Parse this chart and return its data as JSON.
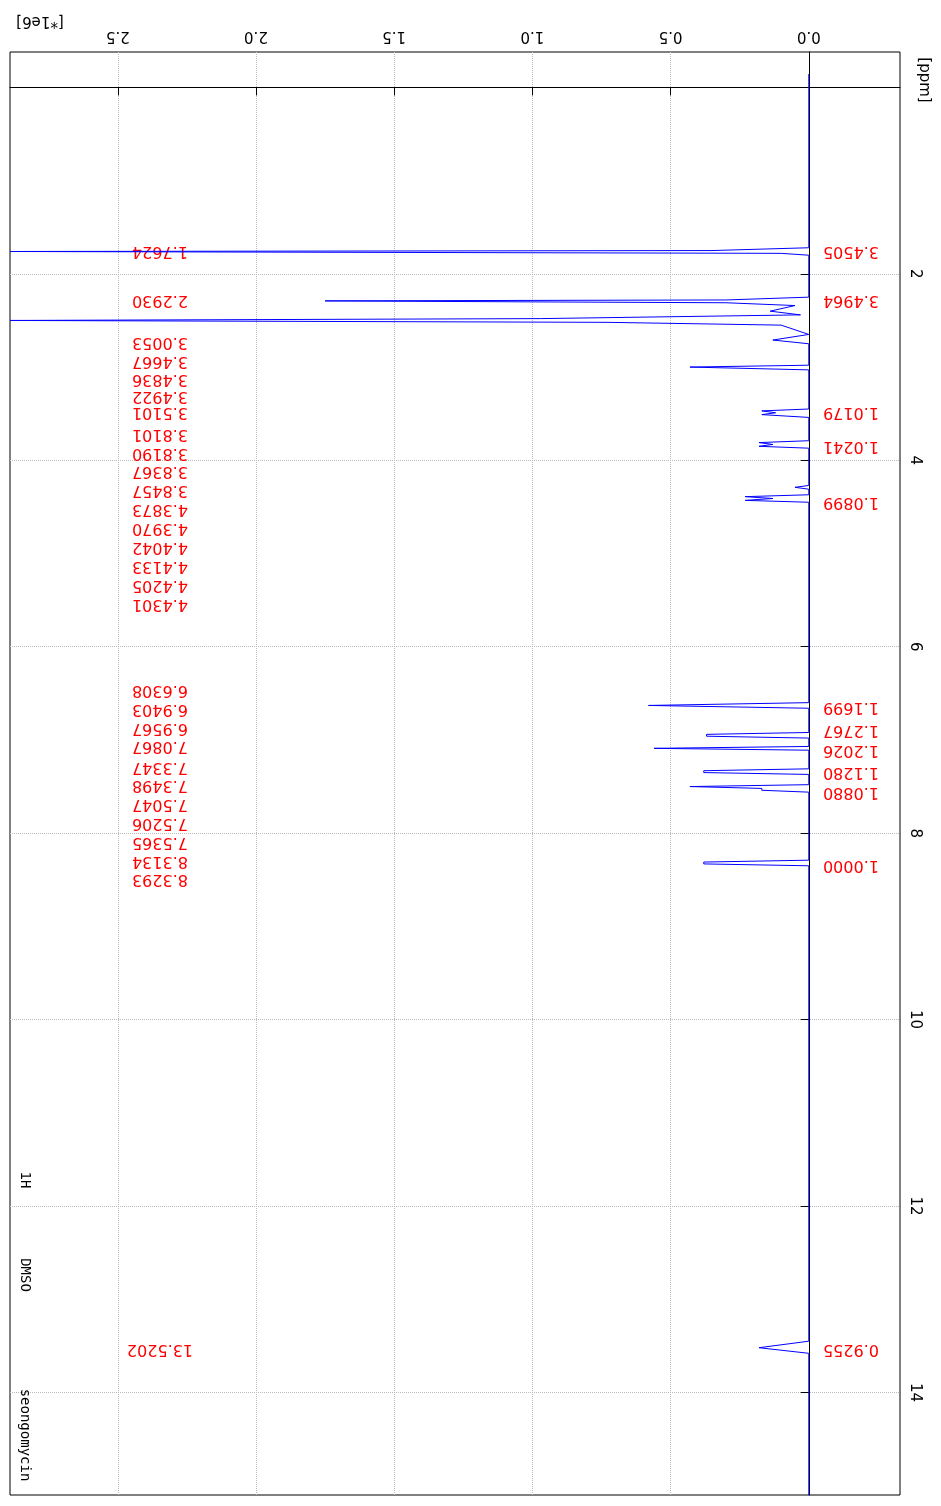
{
  "chart_data": {
    "type": "line",
    "xlabel": "[*1e6]",
    "ylabel": "[ppm]",
    "x": [
      0,
      0,
      0.35,
      2.89,
      0.1,
      0,
      0,
      0.3,
      1.75,
      0.3,
      0.05,
      0.14,
      0.03,
      0.97,
      2.89,
      0.73,
      0.1,
      0,
      0.13,
      0,
      0,
      0.43,
      0,
      0,
      0.17,
      0.12,
      0.17,
      0,
      0,
      0.18,
      0.13,
      0.18,
      0,
      0,
      0.05,
      0,
      0,
      0.23,
      0.13,
      0.23,
      0,
      0,
      0.58,
      0,
      0,
      0.37,
      0.37,
      0,
      0,
      0.56,
      0,
      0,
      0.38,
      0.38,
      0,
      0,
      0.43,
      0.17,
      0.17,
      0,
      0,
      0.38,
      0.38,
      0,
      0,
      0.18,
      0,
      0
    ],
    "series": [
      {
        "color": "#0000ff",
        "values": [
          -0.14,
          1.72,
          1.75,
          1.76,
          1.78,
          1.8,
          2.25,
          2.28,
          2.29,
          2.31,
          2.34,
          2.4,
          2.44,
          2.48,
          2.5,
          2.52,
          2.55,
          2.65,
          2.71,
          2.75,
          2.98,
          3.0,
          3.03,
          3.45,
          3.47,
          3.49,
          3.51,
          3.54,
          3.79,
          3.81,
          3.83,
          3.85,
          3.87,
          4.27,
          4.29,
          4.31,
          4.37,
          4.39,
          4.41,
          4.43,
          4.45,
          6.6,
          6.63,
          6.66,
          6.92,
          6.94,
          6.96,
          6.98,
          7.07,
          7.09,
          7.11,
          7.31,
          7.33,
          7.35,
          7.37,
          7.48,
          7.5,
          7.52,
          7.54,
          7.56,
          8.29,
          8.31,
          8.33,
          8.35,
          13.45,
          13.52,
          13.58,
          15.1
        ]
      }
    ],
    "xlim": [
      2.89,
      -0.33
    ],
    "ylim": [
      15.1,
      -0.38
    ],
    "xticks": [
      {
        "value": 0,
        "label": "0.0"
      },
      {
        "value": 0.5,
        "label": "0.5"
      },
      {
        "value": 1,
        "label": "1.0"
      },
      {
        "value": 1.5,
        "label": "1.5"
      },
      {
        "value": 2,
        "label": "2.0"
      },
      {
        "value": 2.5,
        "label": "2.5"
      }
    ],
    "yticks": [
      {
        "value": 0,
        "label": null
      },
      2,
      4,
      6,
      8,
      10,
      12,
      14
    ],
    "grid": true,
    "marker": "none",
    "line_style": "solid",
    "annotations": [
      "1.7624",
      "2.2930",
      "3.0053",
      "3.4667",
      "3.4836",
      "3.4922",
      "3.5101",
      "3.8101",
      "3.8190",
      "3.8367",
      "3.8457",
      "4.3873",
      "4.3970",
      "4.4042",
      "4.4133",
      "4.4205",
      "4.4301",
      "6.6308",
      "6.9403",
      "6.9567",
      "7.0867",
      "7.3347",
      "7.3498",
      "7.5047",
      "7.5206",
      "7.5365",
      "8.3134",
      "8.3293",
      "13.5202",
      "3.4505",
      "3.4964",
      "1.0179",
      "1.0241",
      "1.0899",
      "1.1699",
      "1.2767",
      "1.2026",
      "1.1280",
      "1.0880",
      "1.0000",
      "0.9255",
      "seongomycin",
      "DMSO",
      "1H"
    ]
  }
}
